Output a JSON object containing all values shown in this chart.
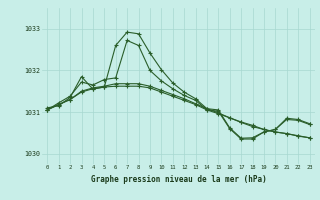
{
  "title": "Graphe pression niveau de la mer (hPa)",
  "bg_color": "#c8eee8",
  "grid_color": "#a8d8d0",
  "line_color": "#2a5e2a",
  "xlim": [
    -0.5,
    23.5
  ],
  "ylim": [
    1029.75,
    1033.5
  ],
  "yticks": [
    1030,
    1031,
    1032,
    1033
  ],
  "xticks": [
    0,
    1,
    2,
    3,
    4,
    5,
    6,
    7,
    8,
    9,
    10,
    11,
    12,
    13,
    14,
    15,
    16,
    17,
    18,
    19,
    20,
    21,
    22,
    23
  ],
  "series": [
    [
      1031.1,
      1031.15,
      1031.35,
      1031.85,
      1031.55,
      1031.6,
      1032.6,
      1032.92,
      1032.88,
      1032.42,
      1032.02,
      1031.7,
      1031.48,
      1031.32,
      1031.08,
      1031.05,
      1030.62,
      1030.37,
      1030.38,
      1030.52,
      1030.58,
      1030.85,
      1030.82,
      1030.72
    ],
    [
      1031.05,
      1031.22,
      1031.38,
      1031.72,
      1031.65,
      1031.78,
      1031.82,
      1032.72,
      1032.6,
      1032.0,
      1031.75,
      1031.56,
      1031.4,
      1031.28,
      1031.05,
      1031.02,
      1030.6,
      1030.35,
      1030.35,
      1030.52,
      1030.58,
      1030.82,
      1030.8,
      1030.7
    ],
    [
      1031.05,
      1031.18,
      1031.3,
      1031.48,
      1031.56,
      1031.6,
      1031.62,
      1031.62,
      1031.62,
      1031.58,
      1031.48,
      1031.38,
      1031.28,
      1031.18,
      1031.05,
      1030.96,
      1030.86,
      1030.76,
      1030.68,
      1030.58,
      1030.52,
      1030.48,
      1030.42,
      1030.38
    ],
    [
      1031.05,
      1031.18,
      1031.3,
      1031.5,
      1031.58,
      1031.62,
      1031.68,
      1031.68,
      1031.68,
      1031.62,
      1031.52,
      1031.42,
      1031.32,
      1031.2,
      1031.08,
      1030.98,
      1030.86,
      1030.75,
      1030.65,
      1030.58,
      1030.52,
      1030.48,
      1030.43,
      1030.38
    ]
  ]
}
